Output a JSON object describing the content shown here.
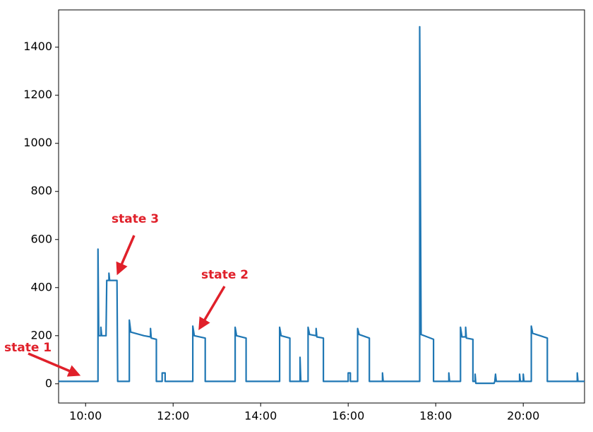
{
  "chart_data": {
    "type": "line",
    "x": [
      "09:23",
      "10:17",
      "10:17",
      "10:18",
      "10:21",
      "10:21",
      "10:22",
      "10:28",
      "10:29",
      "10:32",
      "10:32",
      "10:33",
      "10:43",
      "10:44",
      "11:00",
      "11:00",
      "11:02",
      "11:20",
      "11:29",
      "11:29",
      "11:30",
      "11:37",
      "11:37",
      "11:45",
      "11:45",
      "11:49",
      "11:49",
      "12:27",
      "12:27",
      "12:29",
      "12:44",
      "12:44",
      "13:25",
      "13:25",
      "13:27",
      "13:40",
      "13:40",
      "14:26",
      "14:26",
      "14:28",
      "14:40",
      "14:40",
      "14:54",
      "14:54",
      "14:55",
      "15:05",
      "15:05",
      "15:07",
      "15:16",
      "15:16",
      "15:17",
      "15:26",
      "15:26",
      "16:00",
      "16:00",
      "16:03",
      "16:03",
      "16:13",
      "16:13",
      "16:15",
      "16:29",
      "16:29",
      "16:47",
      "16:47",
      "16:48",
      "17:38",
      "17:38",
      "17:40",
      "17:57",
      "17:57",
      "18:18",
      "18:18",
      "18:19",
      "18:34",
      "18:34",
      "18:36",
      "18:41",
      "18:41",
      "18:42",
      "18:51",
      "18:51",
      "18:54",
      "18:54",
      "18:55",
      "19:20",
      "19:21",
      "19:22",
      "19:23",
      "19:55",
      "19:55",
      "19:56",
      "20:00",
      "20:00",
      "20:01",
      "20:11",
      "20:11",
      "20:13",
      "20:33",
      "20:33",
      "21:14",
      "21:14",
      "21:15",
      "21:24"
    ],
    "series": [
      {
        "color": "#1f77b4",
        "values": [
          10,
          10,
          560,
          200,
          200,
          235,
          200,
          200,
          430,
          430,
          460,
          430,
          430,
          10,
          10,
          265,
          215,
          200,
          195,
          230,
          190,
          185,
          10,
          10,
          45,
          45,
          10,
          10,
          240,
          200,
          190,
          10,
          10,
          235,
          200,
          190,
          10,
          10,
          235,
          200,
          190,
          10,
          10,
          110,
          10,
          10,
          235,
          205,
          200,
          230,
          195,
          190,
          10,
          10,
          45,
          45,
          10,
          10,
          230,
          205,
          190,
          10,
          10,
          45,
          10,
          10,
          1485,
          205,
          185,
          10,
          10,
          45,
          10,
          10,
          235,
          195,
          195,
          235,
          190,
          185,
          10,
          10,
          40,
          2,
          2,
          10,
          40,
          10,
          10,
          40,
          10,
          10,
          40,
          10,
          10,
          240,
          210,
          190,
          10,
          10,
          45,
          10,
          10
        ]
      }
    ],
    "xlim": [
      "09:23",
      "21:24"
    ],
    "xticks": [
      "10:00",
      "12:00",
      "14:00",
      "16:00",
      "18:00",
      "20:00"
    ],
    "ylim": [
      -80,
      1555
    ],
    "yticks": [
      0,
      200,
      400,
      600,
      800,
      1000,
      1200,
      1400
    ],
    "annotations": [
      "state 1",
      "state 2",
      "state 3"
    ]
  }
}
